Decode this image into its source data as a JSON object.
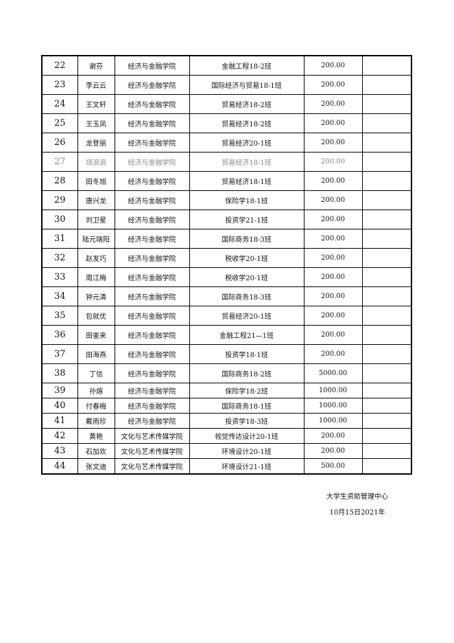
{
  "table": {
    "rows": [
      [
        22,
        "谢芬",
        "经济与金融学院",
        "金融工程18-2班",
        "200.00"
      ],
      [
        23,
        "李云云",
        "经济与金融学院",
        "国际经济与贸易18-1班",
        "200.00"
      ],
      [
        24,
        "王文轩",
        "经济与金融学院",
        "贸易经济18-2班",
        "200.00"
      ],
      [
        25,
        "王玉凤",
        "经济与金融学院",
        "贸易经济18-2班",
        "200.00"
      ],
      [
        26,
        "龙登丽",
        "经济与金融学院",
        "贸易经济20-1班",
        "200.00"
      ],
      [
        27,
        "饶浪浪",
        "经济与金融学院",
        "贸易经济18-1班",
        "200.00"
      ],
      [
        28,
        "田冬旭",
        "经济与金融学院",
        "贸易经济18-1班",
        "200.00"
      ],
      [
        29,
        "唐兴龙",
        "经济与金融学院",
        "保险学18-1班",
        "200.00"
      ],
      [
        30,
        "刘卫星",
        "经济与金融学院",
        "投资学21-1班",
        "200.00"
      ],
      [
        31,
        "陆元瑞阳",
        "经济与金融学院",
        "国际商务18-3班",
        "200.00"
      ],
      [
        32,
        "赵发巧",
        "经济与金融学院",
        "税收学20-1班",
        "200.00"
      ],
      [
        33,
        "周江梅",
        "经济与金融学院",
        "税收学20-1班",
        "200.00"
      ],
      [
        34,
        "钟元清",
        "经济与金融学院",
        "国际商务18-3班",
        "200.00"
      ],
      [
        35,
        "包就优",
        "经济与金融学院",
        "贸易经济20-1班",
        "200.00"
      ],
      [
        36,
        "田崟来",
        "经济与金融学院",
        "金融工程21—1班",
        "200.00"
      ],
      [
        37,
        "田海燕",
        "经济与金融学院",
        "投资学18-1班",
        "200.00"
      ],
      [
        38,
        "丁信",
        "经济与金融学院",
        "国际商务18-2班",
        "5000.00"
      ],
      [
        39,
        "孙熔",
        "经济与金融学院",
        "保险学18-2班",
        "1000.00"
      ],
      [
        40,
        "付春梅",
        "经济与金融学院",
        "国际商务18-1班",
        "1000.00"
      ],
      [
        41,
        "戴雨珍",
        "经济与金融学院",
        "投资学18-3班",
        "1000.00"
      ],
      [
        42,
        "黄艳",
        "文化与艺术传媒学院",
        "视觉传达设计20-1班",
        "200.00"
      ],
      [
        43,
        "石加欢",
        "文化与艺术传媒学院",
        "环境设计20-1班",
        "200.00"
      ],
      [
        44,
        "张文迪",
        "文化与艺术传媒学院",
        "环境设计21-1班",
        "500.00"
      ]
    ]
  },
  "footer": {
    "organization": "大学生资助管理中心",
    "date": "10月15日2021年"
  }
}
